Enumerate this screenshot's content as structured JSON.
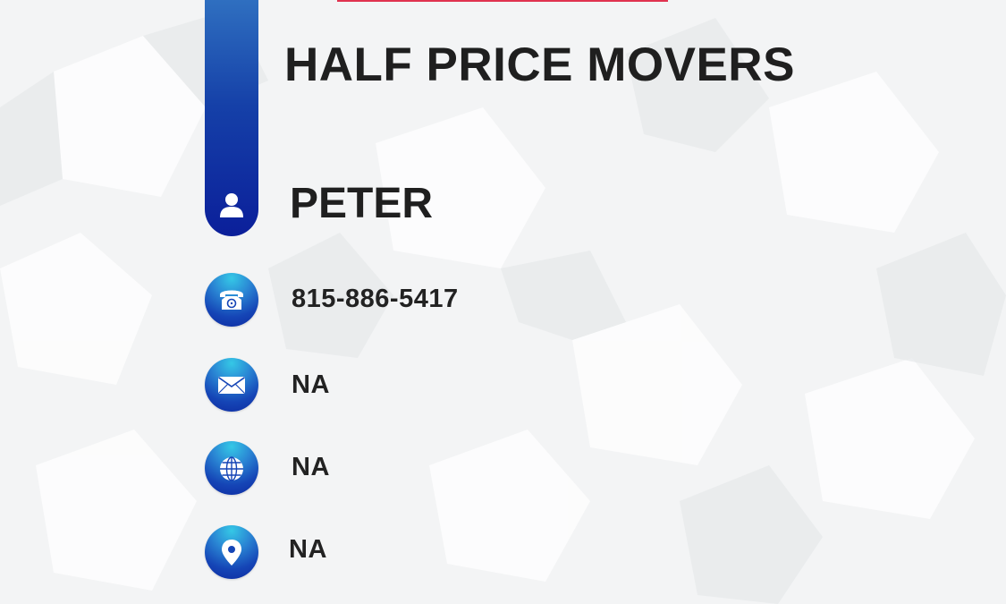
{
  "card": {
    "company_name": "HALF PRICE MOVERS",
    "person_name": "PETER",
    "phone": "815-886-5417",
    "email": "NA",
    "website": "NA",
    "address": "NA"
  },
  "icons": {
    "person": "person-icon",
    "phone": "phone-icon",
    "email": "mail-icon",
    "website": "globe-icon",
    "address": "location-pin-icon"
  },
  "colors": {
    "accent_top": "#e0334f",
    "bar_blue": "#0b1f9a",
    "icon_cyan": "#35c8e6",
    "text_dark": "#1f1f1f"
  }
}
